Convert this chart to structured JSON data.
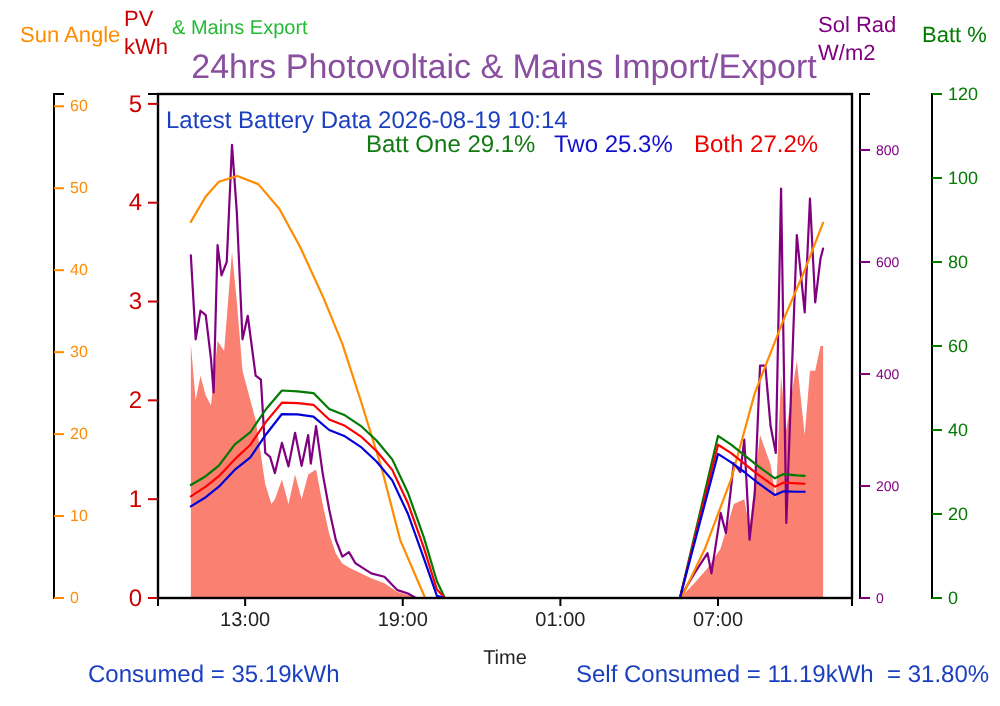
{
  "chart_data": [
    {
      "type": "line",
      "title": "24hrs Photovoltaic & Mains Import/Export",
      "xlabel": "Time",
      "ylabel": "PV kWh",
      "y2label": "Sol Rad W/m2",
      "y3label": "Sun Angle",
      "xlim": [
        "2026-08-18T09:41",
        "2026-08-19T12:06"
      ],
      "xticks": [
        {
          "value": "2026-08-18T13:00",
          "label": "13:00"
        },
        {
          "value": "2026-08-18T19:00",
          "label": "19:00"
        },
        {
          "value": "2026-08-19T01:00",
          "label": "01:00"
        },
        {
          "value": "2026-08-19T07:00",
          "label": "07:00"
        }
      ],
      "ylim": [
        0,
        5.1
      ],
      "yticks": [
        0,
        1,
        2,
        3,
        4,
        5
      ],
      "y2lim": [
        0,
        900
      ],
      "y2ticks": [
        0,
        200,
        400,
        600,
        800
      ],
      "y3lim": [
        0,
        61.5
      ],
      "y3ticks": [
        0,
        10,
        20,
        30,
        40,
        50,
        60
      ],
      "grid": false,
      "legend": false,
      "series": [
        {
          "type": "area",
          "color": "#fa8072",
          "x": [
            "2026-08-18T10:56",
            "2026-08-18T11:07",
            "2026-08-18T11:18",
            "2026-08-18T11:30",
            "2026-08-18T11:42",
            "2026-08-18T11:57",
            "2026-08-18T12:12",
            "2026-08-18T12:30",
            "2026-08-18T12:41",
            "2026-08-18T12:54",
            "2026-08-18T13:06",
            "2026-08-18T13:24",
            "2026-08-18T13:46",
            "2026-08-18T14:00",
            "2026-08-18T14:08",
            "2026-08-18T14:24",
            "2026-08-18T14:39",
            "2026-08-18T14:54",
            "2026-08-18T15:09",
            "2026-08-18T15:24",
            "2026-08-18T15:42",
            "2026-08-18T15:57",
            "2026-08-18T16:12",
            "2026-08-18T16:27",
            "2026-08-18T16:42",
            "2026-08-18T17:00",
            "2026-08-18T17:24",
            "2026-08-18T17:48",
            "2026-08-18T18:18",
            "2026-08-18T18:48",
            "2026-08-18T19:12",
            "2026-08-18T19:30",
            "2026-08-19T05:33",
            "2026-08-19T06:06",
            "2026-08-19T06:36",
            "2026-08-19T07:06",
            "2026-08-19T07:36",
            "2026-08-19T08:00",
            "2026-08-19T08:12",
            "2026-08-19T08:36",
            "2026-08-19T09:00",
            "2026-08-19T09:12",
            "2026-08-19T09:24",
            "2026-08-19T09:36",
            "2026-08-19T10:00",
            "2026-08-19T10:18",
            "2026-08-19T10:30",
            "2026-08-19T10:42",
            "2026-08-19T10:54",
            "2026-08-19T11:00"
          ],
          "values": [
            2.57,
            2.0,
            2.25,
            2.05,
            1.95,
            2.6,
            2.5,
            3.5,
            3.0,
            2.3,
            2.1,
            1.8,
            1.15,
            0.95,
            1.0,
            1.2,
            0.95,
            1.25,
            1.0,
            1.25,
            1.3,
            0.95,
            0.65,
            0.45,
            0.35,
            0.3,
            0.25,
            0.2,
            0.15,
            0.06,
            0.03,
            0,
            0,
            0.15,
            0.3,
            0.5,
            0.95,
            1.0,
            0.7,
            1.65,
            1.35,
            1.0,
            2.25,
            1.7,
            2.4,
            1.65,
            2.3,
            2.3,
            2.55,
            2.55
          ]
        },
        {
          "axis": "y2",
          "color": "#800080",
          "x": [
            "2026-08-18T10:56",
            "2026-08-18T11:07",
            "2026-08-18T11:18",
            "2026-08-18T11:30",
            "2026-08-18T11:42",
            "2026-08-18T11:48",
            "2026-08-18T11:57",
            "2026-08-18T12:06",
            "2026-08-18T12:18",
            "2026-08-18T12:30",
            "2026-08-18T12:41",
            "2026-08-18T12:54",
            "2026-08-18T13:06",
            "2026-08-18T13:24",
            "2026-08-18T13:36",
            "2026-08-18T13:46",
            "2026-08-18T13:57",
            "2026-08-18T14:08",
            "2026-08-18T14:24",
            "2026-08-18T14:39",
            "2026-08-18T14:54",
            "2026-08-18T15:09",
            "2026-08-18T15:24",
            "2026-08-18T15:30",
            "2026-08-18T15:42",
            "2026-08-18T15:57",
            "2026-08-18T16:12",
            "2026-08-18T16:27",
            "2026-08-18T16:42",
            "2026-08-18T16:57",
            "2026-08-18T17:12",
            "2026-08-18T17:24",
            "2026-08-18T17:48",
            "2026-08-18T18:18",
            "2026-08-18T18:48",
            "2026-08-18T19:12",
            "2026-08-18T19:30",
            "2026-08-19T05:33",
            "2026-08-19T06:06",
            "2026-08-19T06:36",
            "2026-08-19T06:45",
            "2026-08-19T07:06",
            "2026-08-19T07:18",
            "2026-08-19T07:36",
            "2026-08-19T07:51",
            "2026-08-19T08:00",
            "2026-08-19T08:12",
            "2026-08-19T08:24",
            "2026-08-19T08:36",
            "2026-08-19T08:48",
            "2026-08-19T09:00",
            "2026-08-19T09:12",
            "2026-08-19T09:24",
            "2026-08-19T09:36",
            "2026-08-19T10:00",
            "2026-08-19T10:18",
            "2026-08-19T10:30",
            "2026-08-19T10:42",
            "2026-08-19T10:54",
            "2026-08-19T11:00"
          ],
          "values": [
            612,
            462,
            513,
            505,
            427,
            367,
            630,
            576,
            600,
            809,
            689,
            462,
            504,
            397,
            390,
            259,
            252,
            223,
            277,
            235,
            295,
            236,
            291,
            240,
            307,
            223,
            158,
            104,
            74,
            82,
            62,
            56,
            44,
            38,
            14,
            8,
            0,
            0,
            44,
            80,
            44,
            152,
            116,
            241,
            225,
            283,
            104,
            187,
            415,
            415,
            307,
            259,
            731,
            134,
            648,
            510,
            713,
            528,
            606,
            624
          ]
        },
        {
          "axis": "y3",
          "color": "#ff8c00",
          "x": [
            "2026-08-18T10:56",
            "2026-08-18T11:30",
            "2026-08-18T12:00",
            "2026-08-18T12:42",
            "2026-08-18T13:30",
            "2026-08-18T14:18",
            "2026-08-18T15:06",
            "2026-08-18T16:00",
            "2026-08-18T16:42",
            "2026-08-18T17:24",
            "2026-08-18T18:12",
            "2026-08-18T18:54",
            "2026-08-18T19:51",
            "2026-08-19T05:36",
            "2026-08-19T06:30",
            "2026-08-19T07:30",
            "2026-08-19T08:24",
            "2026-08-19T09:30",
            "2026-08-19T10:18",
            "2026-08-19T11:00"
          ],
          "values": [
            45.9,
            49,
            50.8,
            51.5,
            50.5,
            47.5,
            42.8,
            36.5,
            31,
            24.1,
            15.8,
            7.1,
            0,
            0,
            6,
            14.5,
            25,
            34,
            40,
            45.8
          ]
        }
      ],
      "annotations": [
        "& Mains Export",
        "Latest Battery Data 2026-08-19 10:14",
        "Batt One 29.1%",
        "Two 25.3%",
        "Both 27.2%",
        "Consumed = 35.19kWh",
        "Self Consumed = 11.19kWh  = 31.80%"
      ]
    },
    {
      "type": "line",
      "ylabel": "Batt %",
      "tick_labels": "y",
      "xlim": [
        "2026-08-18T09:41",
        "2026-08-19T12:06"
      ],
      "ylim": [
        0,
        120
      ],
      "yticks": [
        0,
        20,
        40,
        60,
        80,
        100,
        120
      ],
      "series": [
        {
          "color": "#007a00",
          "x": [
            "2026-08-18T10:56",
            "2026-08-18T11:30",
            "2026-08-18T12:00",
            "2026-08-18T12:36",
            "2026-08-18T13:12",
            "2026-08-18T13:48",
            "2026-08-18T14:24",
            "2026-08-18T15:00",
            "2026-08-18T15:36",
            "2026-08-18T16:12",
            "2026-08-18T16:48",
            "2026-08-18T17:24",
            "2026-08-18T18:00",
            "2026-08-18T18:36",
            "2026-08-18T19:12",
            "2026-08-18T19:48",
            "2026-08-18T20:18",
            "2026-08-18T20:36",
            "2026-08-19T05:33",
            "2026-08-19T07:00",
            "2026-08-19T07:30",
            "2026-08-19T08:00",
            "2026-08-19T08:30",
            "2026-08-19T09:10",
            "2026-08-19T09:30",
            "2026-08-19T10:00",
            "2026-08-19T10:18"
          ],
          "values": [
            26.9,
            29,
            31.5,
            36.5,
            39.5,
            45,
            49.4,
            49.2,
            48.8,
            45,
            43.5,
            41,
            37.5,
            33,
            25,
            14.5,
            4,
            0,
            0,
            38.6,
            36.5,
            34,
            31.5,
            28.5,
            29.5,
            29.2,
            29.1
          ]
        },
        {
          "color": "#ff0000",
          "x": [
            "2026-08-18T10:56",
            "2026-08-18T11:30",
            "2026-08-18T12:00",
            "2026-08-18T12:36",
            "2026-08-18T13:12",
            "2026-08-18T13:48",
            "2026-08-18T14:24",
            "2026-08-18T15:00",
            "2026-08-18T15:36",
            "2026-08-18T16:12",
            "2026-08-18T16:48",
            "2026-08-18T17:24",
            "2026-08-18T18:00",
            "2026-08-18T18:36",
            "2026-08-18T19:12",
            "2026-08-18T19:48",
            "2026-08-18T20:18",
            "2026-08-18T20:36",
            "2026-08-19T05:33",
            "2026-08-19T07:00",
            "2026-08-19T07:30",
            "2026-08-19T08:00",
            "2026-08-19T08:30",
            "2026-08-19T09:10",
            "2026-08-19T09:30",
            "2026-08-19T10:00",
            "2026-08-19T10:18"
          ],
          "values": [
            24.2,
            26.5,
            29,
            33,
            36.5,
            42,
            46.5,
            46.4,
            46,
            42.5,
            41,
            38.5,
            35,
            30.5,
            22.5,
            12,
            2,
            0,
            0,
            36.5,
            34.5,
            32,
            29.5,
            26.5,
            27.5,
            27.3,
            27.2
          ]
        },
        {
          "color": "#0000dd",
          "x": [
            "2026-08-18T10:56",
            "2026-08-18T11:30",
            "2026-08-18T12:00",
            "2026-08-18T12:36",
            "2026-08-18T13:12",
            "2026-08-18T13:48",
            "2026-08-18T14:24",
            "2026-08-18T15:00",
            "2026-08-18T15:36",
            "2026-08-18T16:12",
            "2026-08-18T16:48",
            "2026-08-18T17:24",
            "2026-08-18T18:00",
            "2026-08-18T18:36",
            "2026-08-18T19:12",
            "2026-08-18T19:48",
            "2026-08-18T20:18",
            "2026-08-18T20:36",
            "2026-08-19T05:33",
            "2026-08-19T07:00",
            "2026-08-19T07:30",
            "2026-08-19T08:00",
            "2026-08-19T08:30",
            "2026-08-19T09:10",
            "2026-08-19T09:30",
            "2026-08-19T10:00",
            "2026-08-19T10:18"
          ],
          "values": [
            21.8,
            24,
            26.5,
            30.5,
            33.5,
            39,
            43.8,
            43.7,
            43.2,
            40,
            38.5,
            36,
            32.5,
            28,
            20,
            9.5,
            0.5,
            0,
            0,
            34.3,
            32.3,
            30,
            27.5,
            24.5,
            25.4,
            25.3,
            25.3
          ]
        }
      ]
    }
  ]
}
